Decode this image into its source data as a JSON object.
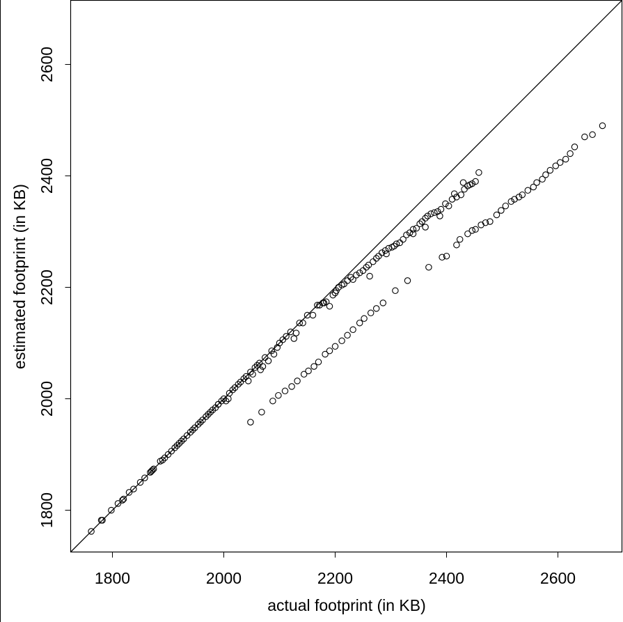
{
  "chart_data": {
    "type": "scatter",
    "xlabel": "actual footprint (in KB)",
    "ylabel": "estimated footprint (in KB)",
    "xlim": [
      1725,
      2715
    ],
    "ylim": [
      1725,
      2715
    ],
    "x_ticks": [
      1800,
      2000,
      2200,
      2400,
      2600
    ],
    "y_ticks": [
      1800,
      2000,
      2200,
      2400,
      2600
    ],
    "reference_line": "y = x",
    "marker": "open circle",
    "color": "#000000",
    "grid": false,
    "legend": "none",
    "series": [
      {
        "points": [
          [
            1762,
            1762
          ],
          [
            1780,
            1782
          ],
          [
            1782,
            1782
          ],
          [
            1798,
            1800
          ],
          [
            1810,
            1812
          ],
          [
            1818,
            1818
          ],
          [
            1820,
            1820
          ],
          [
            1830,
            1832
          ],
          [
            1838,
            1838
          ],
          [
            1850,
            1850
          ],
          [
            1858,
            1858
          ],
          [
            1868,
            1868
          ],
          [
            1870,
            1870
          ],
          [
            1872,
            1872
          ],
          [
            1874,
            1874
          ],
          [
            1886,
            1888
          ],
          [
            1890,
            1890
          ],
          [
            1894,
            1894
          ],
          [
            1900,
            1900
          ],
          [
            1906,
            1906
          ],
          [
            1912,
            1912
          ],
          [
            1916,
            1916
          ],
          [
            1920,
            1920
          ],
          [
            1924,
            1924
          ],
          [
            1928,
            1928
          ],
          [
            1934,
            1934
          ],
          [
            1940,
            1940
          ],
          [
            1944,
            1944
          ],
          [
            1948,
            1948
          ],
          [
            1954,
            1954
          ],
          [
            1958,
            1958
          ],
          [
            1962,
            1962
          ],
          [
            1968,
            1968
          ],
          [
            1972,
            1972
          ],
          [
            1976,
            1976
          ],
          [
            1980,
            1980
          ],
          [
            1985,
            1984
          ],
          [
            1990,
            1990
          ],
          [
            1996,
            1996
          ],
          [
            2000,
            2000
          ],
          [
            2004,
            1996
          ],
          [
            2008,
            2000
          ],
          [
            2010,
            2010
          ],
          [
            2016,
            2016
          ],
          [
            2020,
            2020
          ],
          [
            2026,
            2026
          ],
          [
            2030,
            2030
          ],
          [
            2036,
            2036
          ],
          [
            2040,
            2040
          ],
          [
            2044,
            2032
          ],
          [
            2048,
            2048
          ],
          [
            2052,
            2044
          ],
          [
            2056,
            2056
          ],
          [
            2060,
            2060
          ],
          [
            2064,
            2064
          ],
          [
            2066,
            2052
          ],
          [
            2070,
            2058
          ],
          [
            2074,
            2074
          ],
          [
            2080,
            2068
          ],
          [
            2086,
            2086
          ],
          [
            2090,
            2080
          ],
          [
            2096,
            2092
          ],
          [
            2100,
            2100
          ],
          [
            2106,
            2106
          ],
          [
            2112,
            2112
          ],
          [
            2120,
            2120
          ],
          [
            2126,
            2108
          ],
          [
            2130,
            2118
          ],
          [
            2136,
            2136
          ],
          [
            2142,
            2136
          ],
          [
            2150,
            2150
          ],
          [
            2160,
            2150
          ],
          [
            2168,
            2168
          ],
          [
            2172,
            2168
          ],
          [
            2178,
            2172
          ],
          [
            2184,
            2174
          ],
          [
            2190,
            2166
          ],
          [
            2196,
            2186
          ],
          [
            2202,
            2194
          ],
          [
            2206,
            2200
          ],
          [
            2212,
            2204
          ],
          [
            2216,
            2206
          ],
          [
            2222,
            2212
          ],
          [
            2228,
            2218
          ],
          [
            2232,
            2214
          ],
          [
            2238,
            2222
          ],
          [
            2244,
            2226
          ],
          [
            2250,
            2230
          ],
          [
            2256,
            2236
          ],
          [
            2262,
            2220
          ],
          [
            2268,
            2246
          ],
          [
            2274,
            2252
          ],
          [
            2278,
            2256
          ],
          [
            2284,
            2262
          ],
          [
            2290,
            2266
          ],
          [
            2296,
            2270
          ],
          [
            2302,
            2272
          ],
          [
            2306,
            2274
          ],
          [
            2310,
            2278
          ],
          [
            2316,
            2280
          ],
          [
            2322,
            2286
          ],
          [
            2328,
            2294
          ],
          [
            2334,
            2298
          ],
          [
            2340,
            2304
          ],
          [
            2346,
            2306
          ],
          [
            2352,
            2314
          ],
          [
            2356,
            2318
          ],
          [
            2362,
            2324
          ],
          [
            2366,
            2328
          ],
          [
            2372,
            2332
          ],
          [
            2378,
            2334
          ],
          [
            2384,
            2336
          ],
          [
            2390,
            2340
          ],
          [
            2404,
            2346
          ],
          [
            2410,
            2358
          ],
          [
            2418,
            2362
          ],
          [
            2426,
            2366
          ],
          [
            2432,
            2376
          ],
          [
            2438,
            2382
          ],
          [
            2446,
            2386
          ],
          [
            2452,
            2390
          ],
          [
            2458,
            2406
          ],
          [
            2048,
            1958
          ],
          [
            2068,
            1976
          ],
          [
            2088,
            1996
          ],
          [
            2098,
            2006
          ],
          [
            2110,
            2014
          ],
          [
            2122,
            2022
          ],
          [
            2132,
            2032
          ],
          [
            2144,
            2044
          ],
          [
            2152,
            2050
          ],
          [
            2162,
            2058
          ],
          [
            2170,
            2066
          ],
          [
            2182,
            2080
          ],
          [
            2190,
            2086
          ],
          [
            2200,
            2094
          ],
          [
            2212,
            2104
          ],
          [
            2222,
            2114
          ],
          [
            2232,
            2124
          ],
          [
            2244,
            2136
          ],
          [
            2252,
            2144
          ],
          [
            2264,
            2154
          ],
          [
            2274,
            2162
          ],
          [
            2286,
            2172
          ],
          [
            2308,
            2194
          ],
          [
            2330,
            2212
          ],
          [
            2368,
            2236
          ],
          [
            2392,
            2254
          ],
          [
            2400,
            2256
          ],
          [
            2418,
            2276
          ],
          [
            2424,
            2286
          ],
          [
            2438,
            2296
          ],
          [
            2446,
            2302
          ],
          [
            2452,
            2304
          ],
          [
            2462,
            2312
          ],
          [
            2470,
            2316
          ],
          [
            2478,
            2318
          ],
          [
            2490,
            2330
          ],
          [
            2498,
            2338
          ],
          [
            2506,
            2346
          ],
          [
            2516,
            2354
          ],
          [
            2522,
            2358
          ],
          [
            2530,
            2362
          ],
          [
            2536,
            2366
          ],
          [
            2546,
            2374
          ],
          [
            2556,
            2380
          ],
          [
            2562,
            2388
          ],
          [
            2572,
            2394
          ],
          [
            2578,
            2402
          ],
          [
            2586,
            2410
          ],
          [
            2596,
            2418
          ],
          [
            2604,
            2424
          ],
          [
            2614,
            2430
          ],
          [
            2622,
            2440
          ],
          [
            2630,
            2452
          ],
          [
            2648,
            2470
          ],
          [
            2662,
            2474
          ],
          [
            2680,
            2490
          ],
          [
            1990,
            1990
          ],
          [
            2180,
            2172
          ],
          [
            2200,
            2190
          ],
          [
            2260,
            2240
          ],
          [
            2292,
            2260
          ],
          [
            2340,
            2296
          ],
          [
            2362,
            2308
          ],
          [
            2388,
            2328
          ],
          [
            2398,
            2350
          ],
          [
            2414,
            2368
          ],
          [
            2430,
            2388
          ],
          [
            2442,
            2384
          ]
        ]
      }
    ]
  }
}
